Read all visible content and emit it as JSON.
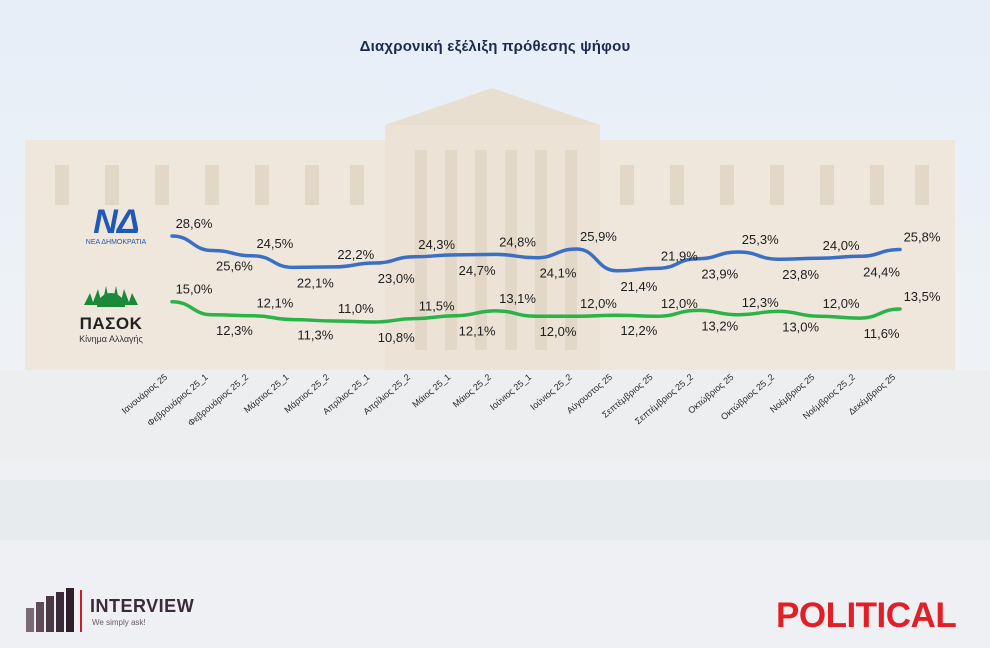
{
  "title": "Διαχρονική εξέλιξη πρόθεσης ψήφου",
  "logos": {
    "nd": {
      "mark": "ΝΔ",
      "subtitle": "ΝΕΑ ΔΗΜΟΚΡΑΤΙΑ"
    },
    "pasok": {
      "name": "ΠΑΣΟΚ",
      "subtitle": "Κίνημα Αλλαγής"
    },
    "pollster": {
      "name": "INTERVIEW",
      "tagline": "We simply ask!"
    },
    "media": {
      "name": "POLITICAL"
    }
  },
  "colors": {
    "nd": "#3a6fc4",
    "pasok": "#2bb34a",
    "title": "#1b2a4e",
    "political": "#e21f26"
  },
  "chart_data": {
    "type": "line",
    "title": "Διαχρονική εξέλιξη πρόθεσης ψήφου",
    "categories": [
      "Ιανουάριος 25",
      "Φεβρουάριος 25_1",
      "Φεβρουάριος 25_2",
      "Μάρτιος 25_1",
      "Μάρτιος 25_2",
      "Απρίλιος 25_1",
      "Απρίλιος 25_2",
      "Μάιος 25_1",
      "Μάιος 25_2",
      "Ιούνιος 25_1",
      "Ιούνιος 25_2",
      "Αύγουστος 25",
      "Σεπτέμβριος 25",
      "Σεπτέμβριος 25_2",
      "Οκτώβριος 25",
      "Οκτώβριος 25_2",
      "Νοέμβριος 25",
      "Νοέμβριος 25_2",
      "Δεκέμβριος 25"
    ],
    "series": [
      {
        "key": "nd",
        "values": [
          28.6,
          25.6,
          24.5,
          22.1,
          22.2,
          23.0,
          24.3,
          24.7,
          24.8,
          24.1,
          25.9,
          21.4,
          21.9,
          23.9,
          25.3,
          23.8,
          24.0,
          24.4,
          25.8
        ],
        "labels": [
          "28,6%",
          "25,6%",
          "24,5%",
          "22,1%",
          "22,2%",
          "23,0%",
          "24,3%",
          "24,7%",
          "24,8%",
          "24,1%",
          "25,9%",
          "21,4%",
          "21,9%",
          "23,9%",
          "25,3%",
          "23,8%",
          "24,0%",
          "24,4%",
          "25,8%"
        ]
      },
      {
        "key": "pasok",
        "values": [
          15.0,
          12.3,
          12.1,
          11.3,
          11.0,
          10.8,
          11.5,
          12.1,
          13.1,
          12.0,
          12.0,
          12.2,
          12.0,
          13.2,
          12.3,
          13.0,
          12.0,
          11.6,
          13.5
        ],
        "labels": [
          "15,0%",
          "12,3%",
          "12,1%",
          "11,3%",
          "11,0%",
          "10,8%",
          "11,5%",
          "12,1%",
          "13,1%",
          "12,0%",
          "12,0%",
          "12,2%",
          "12,0%",
          "13,2%",
          "12,3%",
          "13,0%",
          "12,0%",
          "11,6%",
          "13,5%"
        ]
      }
    ],
    "grid": false,
    "legend": "left (party logos)"
  }
}
